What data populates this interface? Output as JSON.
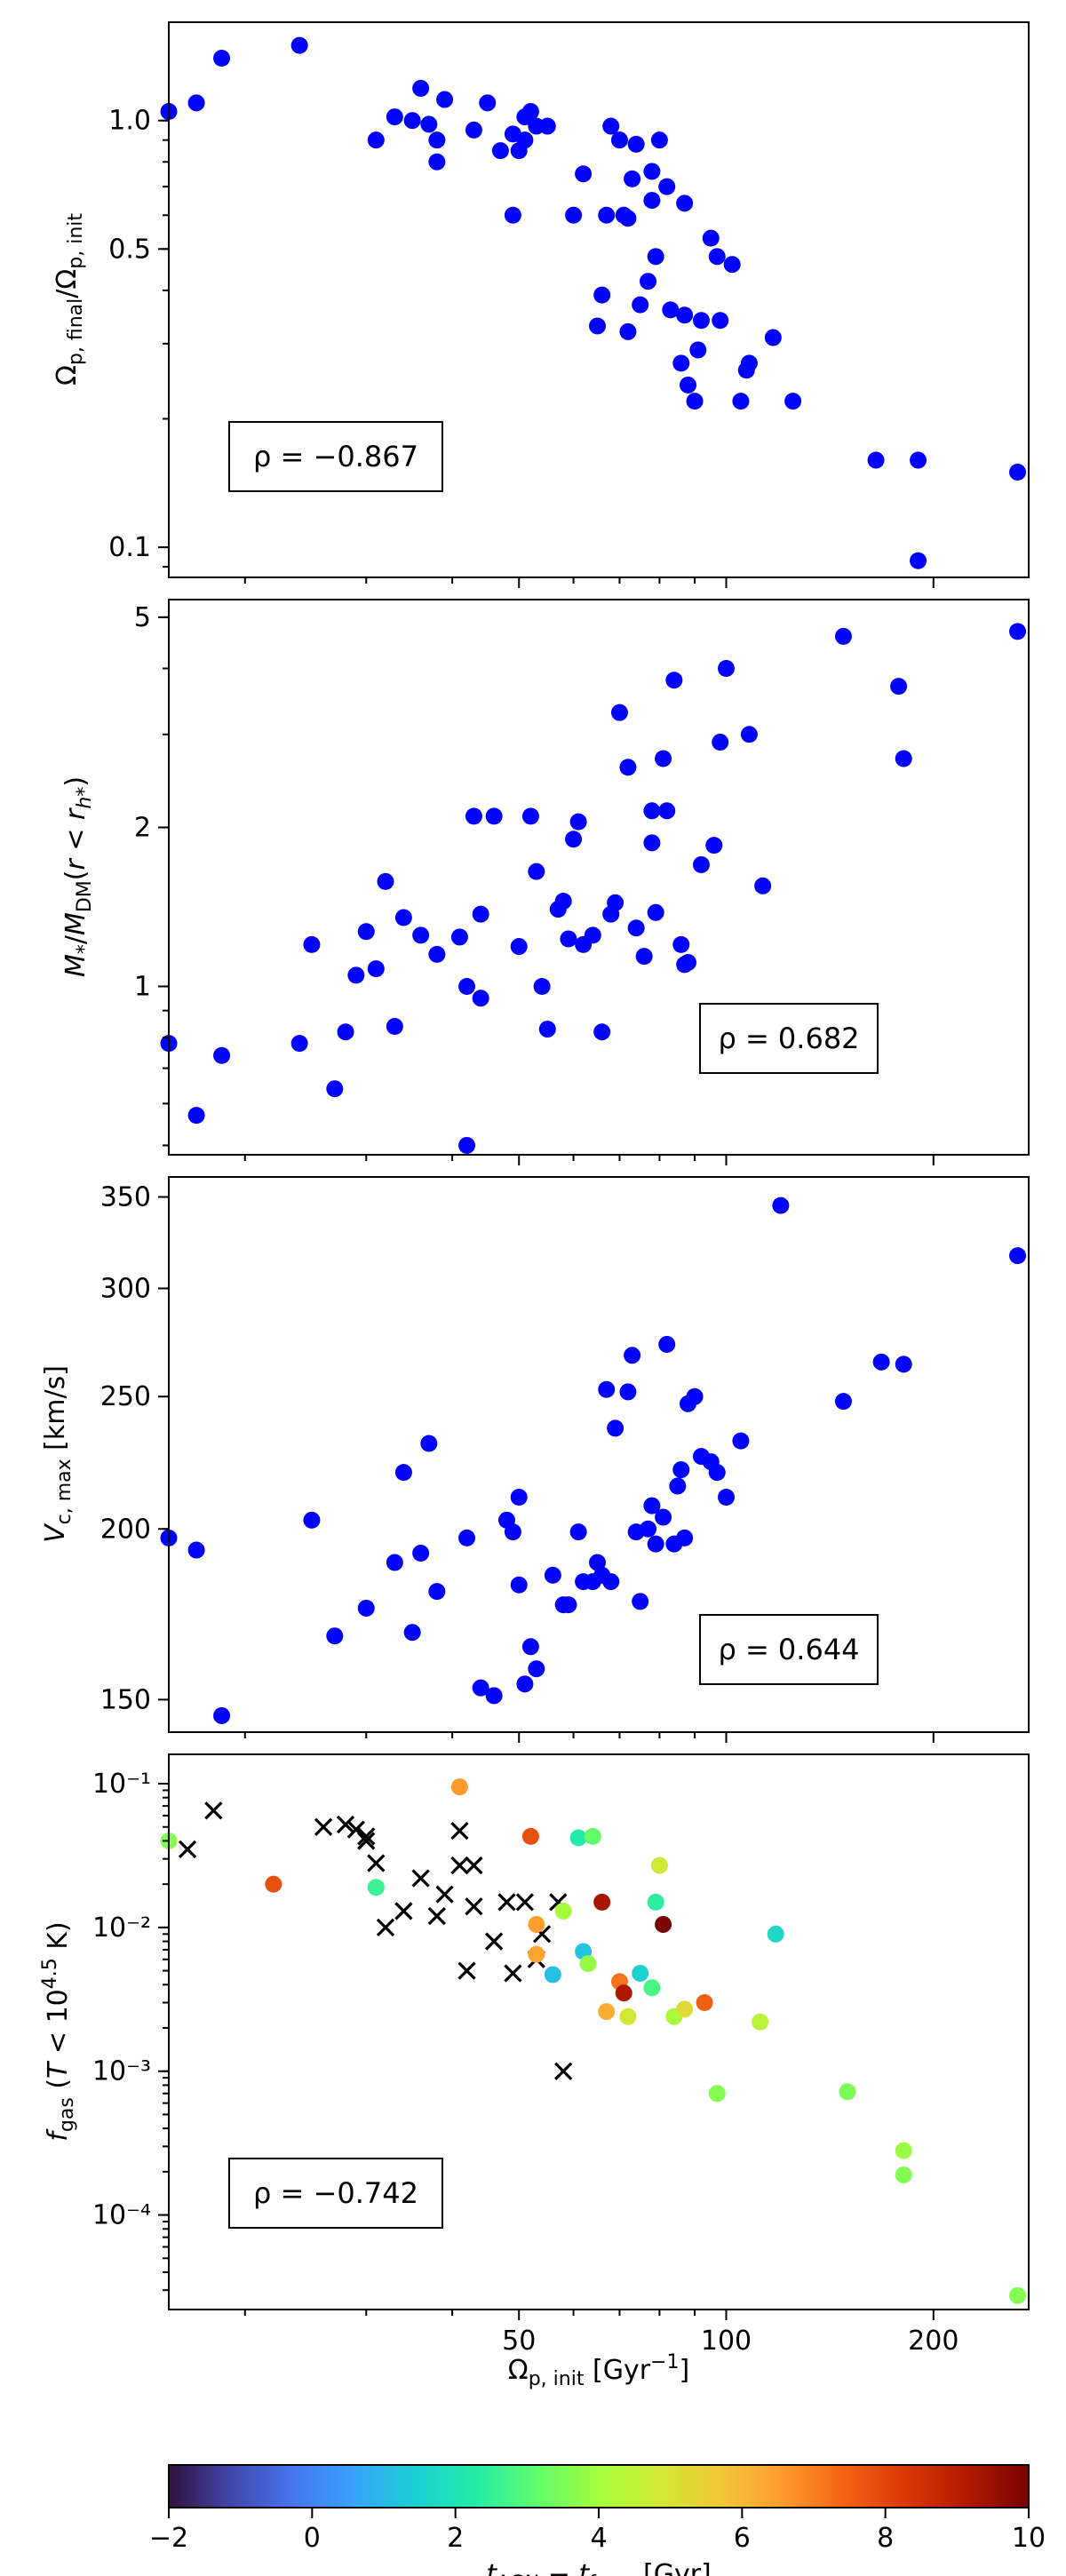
{
  "chart_data": [
    {
      "type": "scatter",
      "panel": "top",
      "ylabel": "Ω_p,final / Ω_p,init",
      "yscale": "log",
      "ylim": [
        0.085,
        1.7
      ],
      "xscale": "log",
      "xlim": [
        15.5,
        275
      ],
      "yticks": [
        {
          "v": 0.1,
          "label": "0.1"
        },
        {
          "v": 0.5,
          "label": "0.5"
        },
        {
          "v": 1.0,
          "label": "1.0"
        }
      ],
      "color": "#0000ff",
      "annotation": "ρ = −0.867",
      "points": [
        [
          15.5,
          1.05
        ],
        [
          17,
          1.1
        ],
        [
          18.5,
          1.4
        ],
        [
          24,
          1.5
        ],
        [
          31,
          0.9
        ],
        [
          33,
          1.02
        ],
        [
          35,
          1.0
        ],
        [
          36,
          1.19
        ],
        [
          37,
          0.98
        ],
        [
          38,
          0.8
        ],
        [
          38,
          0.9
        ],
        [
          39,
          1.12
        ],
        [
          43,
          0.95
        ],
        [
          45,
          1.1
        ],
        [
          47,
          0.85
        ],
        [
          49,
          0.93
        ],
        [
          49,
          0.6
        ],
        [
          50,
          0.85
        ],
        [
          51,
          0.9
        ],
        [
          51,
          1.02
        ],
        [
          52,
          1.05
        ],
        [
          53,
          0.97
        ],
        [
          55,
          0.97
        ],
        [
          60,
          0.6
        ],
        [
          62,
          0.75
        ],
        [
          65,
          0.33
        ],
        [
          66,
          0.39
        ],
        [
          67,
          0.6
        ],
        [
          68,
          0.97
        ],
        [
          70,
          0.9
        ],
        [
          71,
          0.6
        ],
        [
          72,
          0.59
        ],
        [
          72,
          0.32
        ],
        [
          73,
          0.73
        ],
        [
          74,
          0.88
        ],
        [
          75,
          0.37
        ],
        [
          77,
          0.42
        ],
        [
          78,
          0.65
        ],
        [
          78,
          0.76
        ],
        [
          79,
          0.48
        ],
        [
          80,
          0.9
        ],
        [
          82,
          0.7
        ],
        [
          83,
          0.36
        ],
        [
          86,
          0.27
        ],
        [
          87,
          0.64
        ],
        [
          87,
          0.35
        ],
        [
          88,
          0.24
        ],
        [
          90,
          0.22
        ],
        [
          91,
          0.29
        ],
        [
          92,
          0.34
        ],
        [
          95,
          0.53
        ],
        [
          97,
          0.48
        ],
        [
          98,
          0.34
        ],
        [
          102,
          0.46
        ],
        [
          105,
          0.22
        ],
        [
          107,
          0.26
        ],
        [
          108,
          0.27
        ],
        [
          117,
          0.31
        ],
        [
          125,
          0.22
        ],
        [
          165,
          0.16
        ],
        [
          190,
          0.16
        ],
        [
          190,
          0.093
        ],
        [
          265,
          0.15
        ]
      ]
    },
    {
      "type": "scatter",
      "panel": "second",
      "ylabel": "M*/M_DM (r < r_h*)",
      "yscale": "log",
      "ylim": [
        0.48,
        5.4
      ],
      "xscale": "log",
      "xlim": [
        15.5,
        275
      ],
      "yticks": [
        {
          "v": 1,
          "label": "1"
        },
        {
          "v": 2,
          "label": "2"
        },
        {
          "v": 5,
          "label": "5"
        }
      ],
      "color": "#0000ff",
      "annotation": "ρ = 0.682",
      "points": [
        [
          15.5,
          0.78
        ],
        [
          17,
          0.57
        ],
        [
          18.5,
          0.74
        ],
        [
          24,
          0.78
        ],
        [
          25,
          1.2
        ],
        [
          27,
          0.64
        ],
        [
          28,
          0.82
        ],
        [
          29,
          1.05
        ],
        [
          30,
          1.27
        ],
        [
          31,
          1.08
        ],
        [
          32,
          1.58
        ],
        [
          33,
          0.84
        ],
        [
          34,
          1.35
        ],
        [
          36,
          1.25
        ],
        [
          38,
          1.15
        ],
        [
          41,
          1.24
        ],
        [
          42,
          1.0
        ],
        [
          42,
          0.5
        ],
        [
          43,
          2.1
        ],
        [
          44,
          1.37
        ],
        [
          44,
          0.95
        ],
        [
          46,
          2.1
        ],
        [
          50,
          1.19
        ],
        [
          52,
          2.1
        ],
        [
          53,
          1.65
        ],
        [
          54,
          1.0
        ],
        [
          55,
          0.83
        ],
        [
          57,
          1.4
        ],
        [
          58,
          1.45
        ],
        [
          59,
          1.23
        ],
        [
          60,
          1.9
        ],
        [
          61,
          2.05
        ],
        [
          62,
          1.2
        ],
        [
          64,
          1.25
        ],
        [
          66,
          0.82
        ],
        [
          68,
          1.37
        ],
        [
          69,
          1.44
        ],
        [
          70,
          3.3
        ],
        [
          72,
          2.6
        ],
        [
          74,
          1.29
        ],
        [
          76,
          1.14
        ],
        [
          78,
          2.15
        ],
        [
          78,
          1.87
        ],
        [
          79,
          1.38
        ],
        [
          81,
          2.7
        ],
        [
          82,
          2.15
        ],
        [
          84,
          3.8
        ],
        [
          86,
          1.2
        ],
        [
          87,
          1.1
        ],
        [
          88,
          1.11
        ],
        [
          92,
          1.7
        ],
        [
          96,
          1.85
        ],
        [
          98,
          2.9
        ],
        [
          100,
          4.0
        ],
        [
          108,
          3.0
        ],
        [
          113,
          1.55
        ],
        [
          148,
          4.6
        ],
        [
          178,
          3.7
        ],
        [
          181,
          2.7
        ],
        [
          265,
          4.7
        ]
      ]
    },
    {
      "type": "scatter",
      "panel": "third",
      "ylabel": "V_c,max [km/s]",
      "yscale": "log",
      "ylim": [
        142,
        362
      ],
      "xscale": "log",
      "xlim": [
        15.5,
        275
      ],
      "yticks": [
        {
          "v": 150,
          "label": "150"
        },
        {
          "v": 200,
          "label": "200"
        },
        {
          "v": 250,
          "label": "250"
        },
        {
          "v": 300,
          "label": "300"
        },
        {
          "v": 350,
          "label": "350"
        }
      ],
      "color": "#0000ff",
      "annotation": "ρ = 0.644",
      "points": [
        [
          15.5,
          197
        ],
        [
          17,
          193
        ],
        [
          18.5,
          146
        ],
        [
          25,
          203
        ],
        [
          27,
          167
        ],
        [
          30,
          175
        ],
        [
          33,
          189
        ],
        [
          34,
          220
        ],
        [
          35,
          168
        ],
        [
          36,
          192
        ],
        [
          37,
          231
        ],
        [
          38,
          180
        ],
        [
          42,
          197
        ],
        [
          44,
          153
        ],
        [
          46,
          151
        ],
        [
          48,
          203
        ],
        [
          49,
          199
        ],
        [
          50,
          211
        ],
        [
          50,
          182
        ],
        [
          51,
          154
        ],
        [
          52,
          164
        ],
        [
          53,
          158
        ],
        [
          56,
          185
        ],
        [
          58,
          176
        ],
        [
          59,
          176
        ],
        [
          61,
          199
        ],
        [
          62,
          183
        ],
        [
          64,
          183
        ],
        [
          65,
          189
        ],
        [
          66,
          185
        ],
        [
          67,
          253
        ],
        [
          68,
          183
        ],
        [
          69,
          237
        ],
        [
          72,
          252
        ],
        [
          73,
          268
        ],
        [
          74,
          199
        ],
        [
          75,
          177
        ],
        [
          77,
          200
        ],
        [
          78,
          208
        ],
        [
          79,
          195
        ],
        [
          81,
          204
        ],
        [
          82,
          273
        ],
        [
          84,
          195
        ],
        [
          85,
          215
        ],
        [
          86,
          221
        ],
        [
          87,
          197
        ],
        [
          88,
          247
        ],
        [
          90,
          250
        ],
        [
          92,
          226
        ],
        [
          95,
          224
        ],
        [
          97,
          220
        ],
        [
          100,
          211
        ],
        [
          105,
          232
        ],
        [
          120,
          345
        ],
        [
          148,
          248
        ],
        [
          168,
          265
        ],
        [
          181,
          264
        ],
        [
          265,
          317
        ]
      ]
    },
    {
      "type": "scatter",
      "panel": "bottom",
      "xlabel": "Ω_p,init [Gyr⁻¹]",
      "ylabel": "f_gas (T < 10^4.5 K)",
      "yscale": "log",
      "ylim": [
        2.2e-05,
        0.16
      ],
      "xscale": "log",
      "xlim": [
        15.5,
        275
      ],
      "xticks": [
        {
          "v": 50,
          "label": "50"
        },
        {
          "v": 100,
          "label": "100"
        },
        {
          "v": 200,
          "label": "200"
        }
      ],
      "yticks": [
        {
          "v": 0.0001,
          "label": "10⁻⁴"
        },
        {
          "v": 0.001,
          "label": "10⁻³"
        },
        {
          "v": 0.01,
          "label": "10⁻²"
        },
        {
          "v": 0.1,
          "label": "10⁻¹"
        }
      ],
      "annotation": "ρ = −0.742",
      "crosses": [
        [
          16.5,
          0.035
        ],
        [
          18,
          0.065
        ],
        [
          26,
          0.05
        ],
        [
          28,
          0.052
        ],
        [
          29,
          0.048
        ],
        [
          30,
          0.043
        ],
        [
          30,
          0.04
        ],
        [
          31,
          0.028
        ],
        [
          32,
          0.01
        ],
        [
          34,
          0.013
        ],
        [
          36,
          0.022
        ],
        [
          38,
          0.012
        ],
        [
          39,
          0.017
        ],
        [
          41,
          0.027
        ],
        [
          41,
          0.047
        ],
        [
          42,
          0.005
        ],
        [
          43,
          0.014
        ],
        [
          43,
          0.027
        ],
        [
          46,
          0.008
        ],
        [
          48,
          0.015
        ],
        [
          49,
          0.0048
        ],
        [
          51,
          0.015
        ],
        [
          53,
          0.006
        ],
        [
          54,
          0.009
        ],
        [
          57,
          0.015
        ],
        [
          58,
          0.001
        ]
      ],
      "points": [
        [
          15.5,
          0.04,
          3.6
        ],
        [
          22,
          0.02,
          7.8
        ],
        [
          31,
          0.019,
          2.6
        ],
        [
          41,
          0.095,
          6.6
        ],
        [
          52,
          0.043,
          7.8
        ],
        [
          53,
          0.0105,
          6.5
        ],
        [
          53,
          0.0065,
          6.4
        ],
        [
          56,
          0.0047,
          1.1
        ],
        [
          58,
          0.013,
          4.0
        ],
        [
          61,
          0.042,
          2.2
        ],
        [
          62,
          0.0068,
          1.2
        ],
        [
          63,
          0.0056,
          3.8
        ],
        [
          64,
          0.043,
          3.2
        ],
        [
          66,
          0.015,
          9.3
        ],
        [
          67,
          0.0026,
          6.2
        ],
        [
          70,
          0.0042,
          7.2
        ],
        [
          71,
          0.0035,
          9.2
        ],
        [
          72,
          0.0024,
          4.9
        ],
        [
          75,
          0.0048,
          1.5
        ],
        [
          78,
          0.0038,
          2.8
        ],
        [
          79,
          0.015,
          2.4
        ],
        [
          80,
          0.027,
          4.8
        ],
        [
          81,
          0.0105,
          10
        ],
        [
          84,
          0.0024,
          4.1
        ],
        [
          87,
          0.0027,
          5.2
        ],
        [
          93,
          0.003,
          7.5
        ],
        [
          97,
          0.0007,
          3.6
        ],
        [
          112,
          0.0022,
          4.4
        ],
        [
          118,
          0.009,
          1.7
        ],
        [
          150,
          0.00072,
          3.5
        ],
        [
          181,
          0.00028,
          3.9
        ],
        [
          181,
          0.00019,
          3.6
        ],
        [
          265,
          2.75e-05,
          3.6
        ]
      ]
    }
  ],
  "colorbar": {
    "label": "t_AGN − t_form [Gyr]",
    "range": [
      -2,
      10
    ],
    "ticks": [
      "−2",
      "0",
      "2",
      "4",
      "6",
      "8",
      "10"
    ],
    "colors": [
      "#30123b",
      "#4145ab",
      "#4675ed",
      "#39a2fc",
      "#1bcfd4",
      "#24eca6",
      "#61fc6c",
      "#a4fc3b",
      "#d1e834",
      "#f3c63a",
      "#fe9b2d",
      "#f36315",
      "#d93806",
      "#b11901",
      "#7a0402"
    ]
  }
}
